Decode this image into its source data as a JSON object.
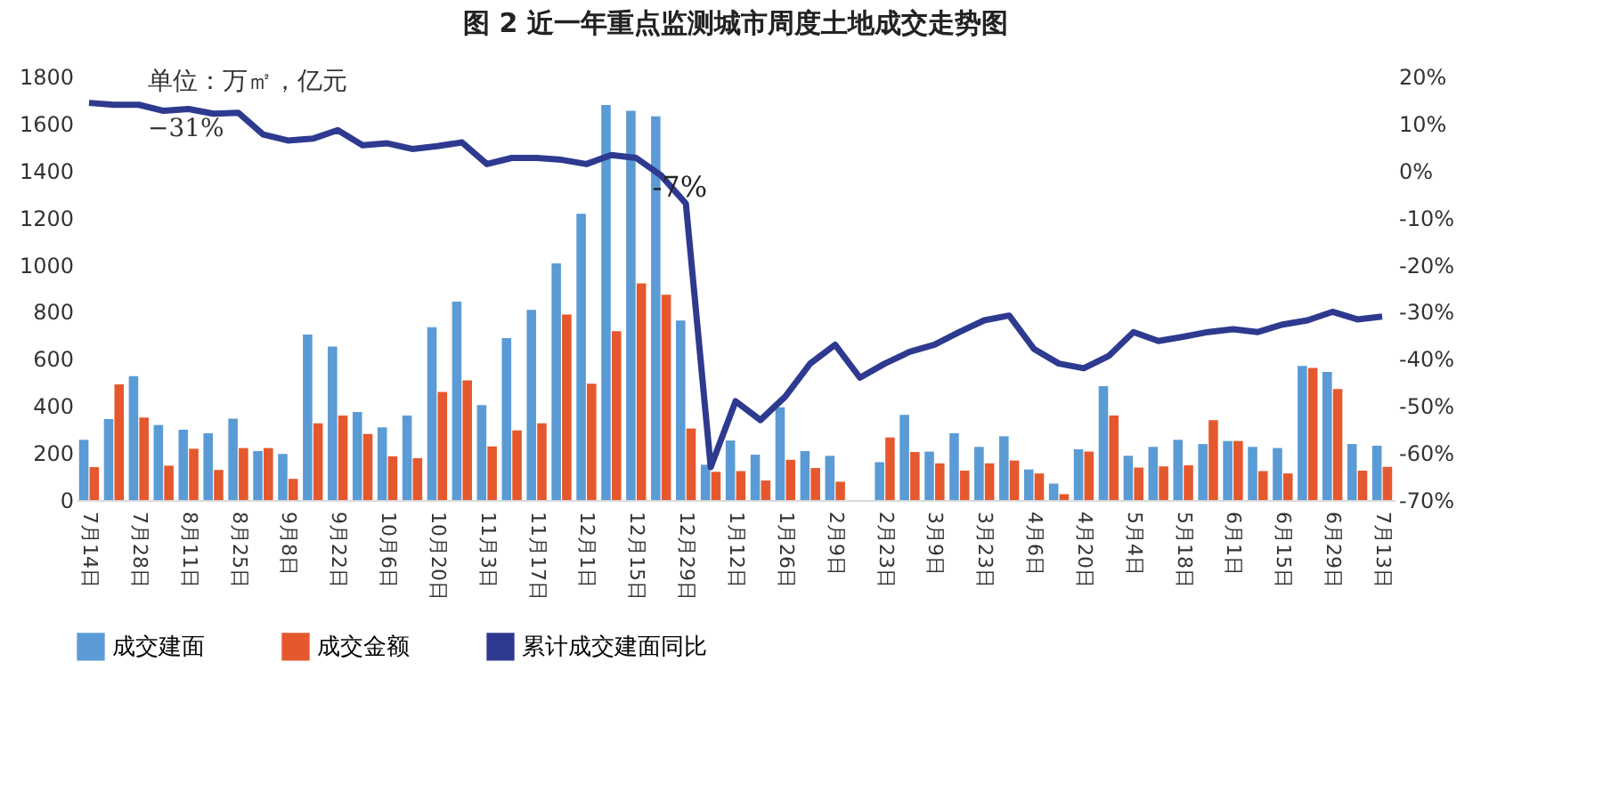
{
  "chart_data": {
    "type": "bar",
    "title": "图 2 近一年重点监测城市周度土地成交走势图",
    "categories": [
      "7月14日",
      null,
      "7月28日",
      null,
      "8月11日",
      null,
      "8月25日",
      null,
      "9月8日",
      null,
      "9月22日",
      null,
      "10月6日",
      null,
      "10月20日",
      null,
      "11月3日",
      null,
      "11月17日",
      null,
      "12月1日",
      null,
      "12月15日",
      null,
      "12月29日",
      null,
      "1月12日",
      null,
      "1月26日",
      null,
      "2月9日",
      null,
      "2月23日",
      null,
      "3月9日",
      null,
      "3月23日",
      null,
      "4月6日",
      null,
      "4月20日",
      null,
      "5月4日",
      null,
      "5月18日",
      null,
      "6月1日",
      null,
      "6月15日",
      null,
      "6月29日",
      null,
      "7月13日"
    ],
    "series": [
      {
        "name": "成交建面",
        "color": "#5b9bd5",
        "values": [
          256,
          344,
          527,
          319,
          299,
          284,
          346,
          208,
          196,
          703,
          652,
          374,
          309,
          359,
          735,
          843,
          404,
          688,
          808,
          1006,
          1217,
          1679,
          1654,
          1631,
          763,
          150,
          253,
          193,
          394,
          208,
          188,
          null,
          161,
          362,
          206,
          284,
          226,
          271,
          130,
          70,
          216,
          484,
          188,
          226,
          256,
          238,
          251,
          226,
          221,
          570,
          545,
          238,
          231
        ]
      },
      {
        "name": "成交金额",
        "color": "#e5582e",
        "values": [
          140,
          492,
          351,
          146,
          218,
          128,
          221,
          221,
          90,
          326,
          359,
          281,
          186,
          178,
          459,
          509,
          228,
          296,
          326,
          788,
          494,
          718,
          921,
          873,
          304,
          120,
          123,
          83,
          171,
          136,
          78,
          null,
          266,
          204,
          156,
          125,
          156,
          168,
          113,
          25,
          206,
          359,
          138,
          143,
          148,
          339,
          251,
          123,
          113,
          562,
          472,
          125,
          141
        ]
      },
      {
        "name": "累计成交建面同比",
        "type": "line",
        "axis": "y2",
        "color": "#2e3a8f",
        "values": [
          14.4,
          14,
          14,
          12.7,
          13.1,
          12.1,
          12.3,
          7.7,
          6.4,
          6.8,
          8.6,
          5.4,
          5.8,
          4.6,
          5.2,
          6,
          1.4,
          2.7,
          2.7,
          2.3,
          1.4,
          3.3,
          2.7,
          -1,
          -7,
          -63,
          -49,
          -53,
          -48,
          -41,
          -37,
          -44,
          -41,
          -38.5,
          -37,
          -34.3,
          -31.8,
          -30.8,
          -37.9,
          -41,
          -42,
          -39.4,
          -34.3,
          -36.2,
          -35.3,
          -34.3,
          -33.7,
          -34.3,
          -32.7,
          -31.8,
          -30,
          -31.6,
          -31
        ]
      }
    ],
    "ylim": [
      0,
      1800
    ],
    "yticks": [
      0,
      200,
      400,
      600,
      800,
      1000,
      1200,
      1400,
      1600,
      1800
    ],
    "y2lim": [
      -70,
      20
    ],
    "y2ticks": [
      {
        "value": 20,
        "label": "20%"
      },
      {
        "value": 10,
        "label": "10%"
      },
      {
        "value": 0,
        "label": "0%"
      },
      {
        "value": -10,
        "label": "-10%"
      },
      {
        "value": -20,
        "label": "-20%"
      },
      {
        "value": -30,
        "label": "-30%"
      },
      {
        "value": -40,
        "label": "-40%"
      },
      {
        "value": -50,
        "label": "-50%"
      },
      {
        "value": -60,
        "label": "-60%"
      },
      {
        "value": -70,
        "label": "-70%"
      }
    ],
    "annotations": [
      "单位：万㎡，亿元",
      {
        "text": "-7%",
        "x": "12月29日"
      },
      "−31%"
    ],
    "legend": "bottom",
    "grid": false
  }
}
